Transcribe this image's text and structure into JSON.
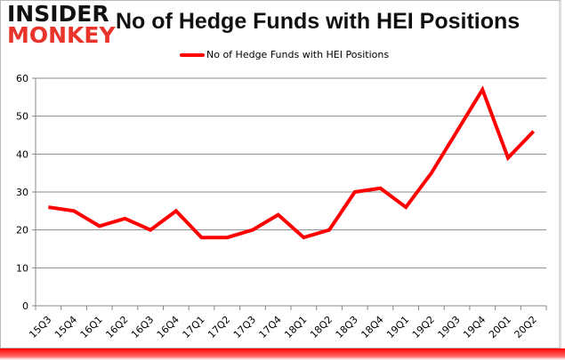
{
  "logo": {
    "line1": "INSIDER",
    "line2": "MONKEY"
  },
  "title": "No of Hedge Funds with HEI Positions",
  "legend": {
    "label": "No of Hedge Funds with HEI Positions",
    "color": "#ff0000"
  },
  "chart_data": {
    "type": "line",
    "title": "No of Hedge Funds with HEI Positions",
    "xlabel": "",
    "ylabel": "",
    "ylim": [
      0,
      60
    ],
    "yticks": [
      0,
      10,
      20,
      30,
      40,
      50,
      60
    ],
    "grid": true,
    "legend_position": "top",
    "categories": [
      "15Q3",
      "15Q4",
      "16Q1",
      "16Q2",
      "16Q3",
      "16Q4",
      "17Q1",
      "17Q2",
      "17Q3",
      "17Q4",
      "18Q1",
      "18Q2",
      "18Q3",
      "18Q4",
      "19Q1",
      "19Q2",
      "19Q3",
      "19Q4",
      "20Q1",
      "20Q2"
    ],
    "series": [
      {
        "name": "No of Hedge Funds with HEI Positions",
        "color": "#ff0000",
        "values": [
          26,
          25,
          21,
          23,
          20,
          25,
          18,
          18,
          20,
          24,
          18,
          20,
          30,
          31,
          26,
          35,
          46,
          57,
          39,
          46
        ]
      }
    ]
  }
}
